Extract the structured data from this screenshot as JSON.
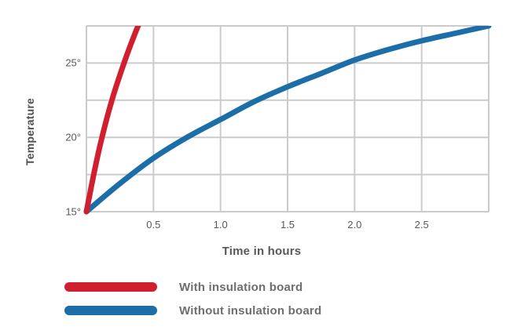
{
  "chart_data": {
    "type": "line",
    "title": "",
    "xlabel": "Time in hours",
    "ylabel": "Temperature",
    "xlim": [
      0,
      3.0
    ],
    "ylim": [
      15,
      27.5
    ],
    "grid": {
      "enabled": true,
      "x_step": 0.5,
      "y_step": 2.5,
      "color": "#cbcbcb"
    },
    "x_ticks": [
      {
        "value": 0.5,
        "label": "0.5"
      },
      {
        "value": 1.0,
        "label": "1.0"
      },
      {
        "value": 1.5,
        "label": "1.5"
      },
      {
        "value": 2.0,
        "label": "2.0"
      },
      {
        "value": 2.5,
        "label": "2.5"
      }
    ],
    "y_ticks": [
      {
        "value": 15,
        "label": "15°"
      },
      {
        "value": 20,
        "label": "20°"
      },
      {
        "value": 25,
        "label": "25°"
      }
    ],
    "series": [
      {
        "name": "With insulation board",
        "color": "#d0202f",
        "x": [
          0,
          0.05,
          0.1,
          0.15,
          0.2,
          0.25,
          0.3,
          0.35,
          0.39
        ],
        "y": [
          15,
          17.3,
          19.4,
          21.2,
          22.8,
          24.2,
          25.5,
          26.7,
          27.6
        ]
      },
      {
        "name": "Without insulation board",
        "color": "#1c6ea8",
        "x": [
          0,
          0.25,
          0.5,
          0.75,
          1.0,
          1.25,
          1.5,
          1.75,
          2.0,
          2.25,
          2.5,
          2.75,
          3.0
        ],
        "y": [
          15,
          16.9,
          18.6,
          20.0,
          21.2,
          22.4,
          23.4,
          24.3,
          25.2,
          25.9,
          26.5,
          27.0,
          27.5
        ]
      }
    ],
    "legend_position": "bottom-left"
  }
}
